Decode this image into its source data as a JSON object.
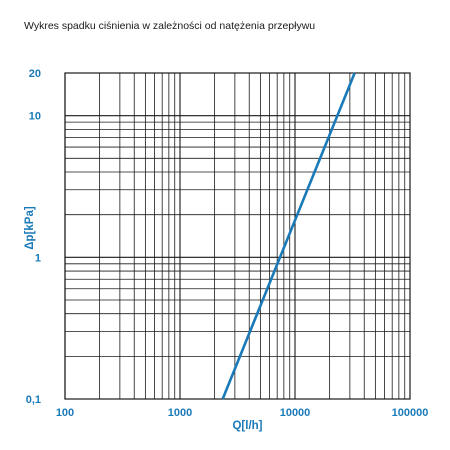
{
  "header": {
    "title": "Wykres spadku ciśnienia w zależności od natężenia przepływu"
  },
  "colors": {
    "accent": "#1a7ab8",
    "grid": "#1a1a1a",
    "text": "#1a1a1a"
  },
  "chart_data": {
    "type": "line",
    "title": "Wykres spadku ciśnienia w zależności od natężenia przepływu",
    "xlabel": "Q[l/h]",
    "ylabel": "Δp[kPa]",
    "xscale": "log",
    "yscale": "log",
    "xlim": [
      100,
      100000
    ],
    "ylim": [
      0.1,
      20
    ],
    "x_ticks": [
      100,
      1000,
      10000,
      100000
    ],
    "x_tick_labels": [
      "100",
      "1000",
      "10000",
      "100000"
    ],
    "y_ticks": [
      0.1,
      1,
      10,
      20
    ],
    "y_tick_labels": [
      "0,1",
      "1",
      "10",
      "20"
    ],
    "grid": true,
    "series": [
      {
        "x": [
          2350,
          33000
        ],
        "y": [
          0.1,
          20
        ]
      }
    ]
  }
}
